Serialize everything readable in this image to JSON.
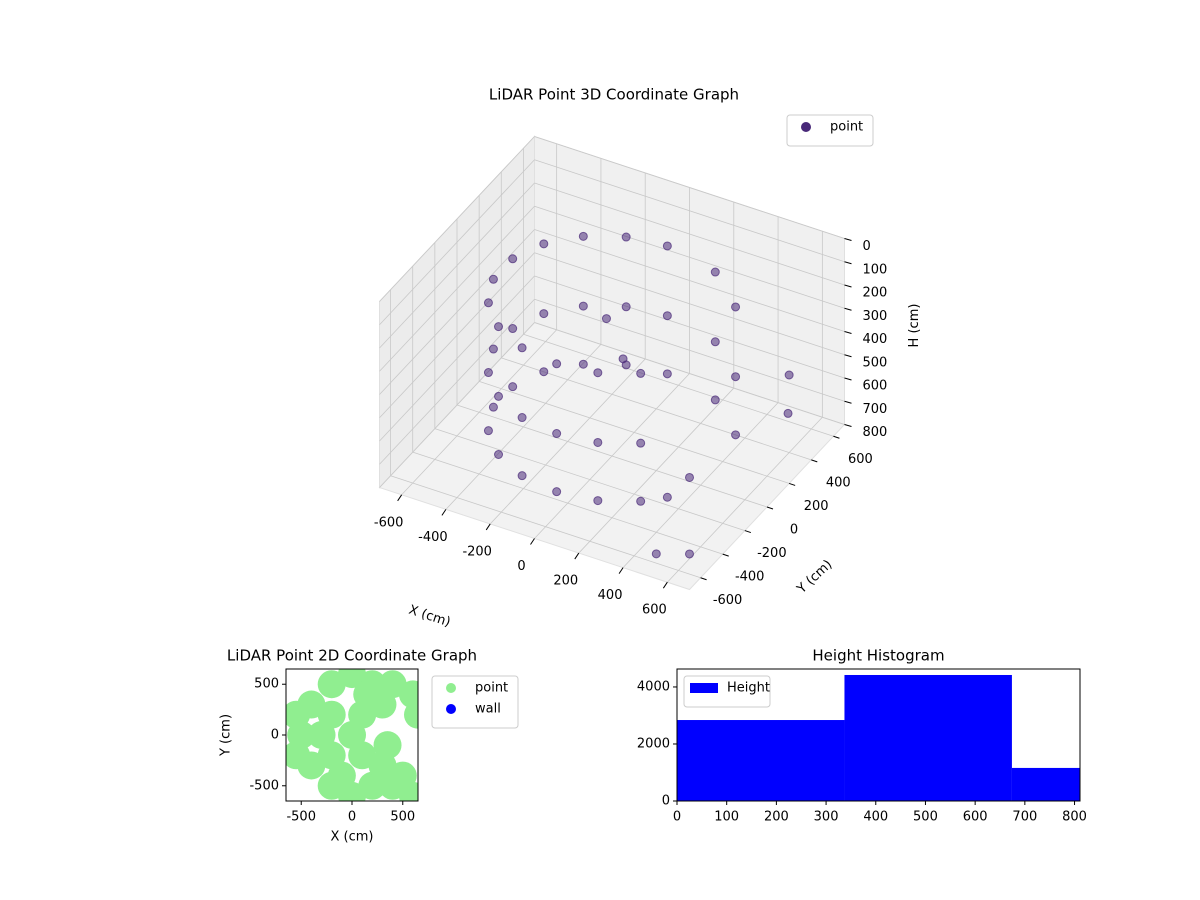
{
  "chart_data": [
    {
      "type": "scatter3d",
      "title": "LiDAR Point 3D Coordinate Graph",
      "xlabel": "X (cm)",
      "ylabel": "Y (cm)",
      "zlabel": "H (cm)",
      "xlim": [
        -700,
        700
      ],
      "ylim": [
        -700,
        700
      ],
      "zlim": [
        800,
        0
      ],
      "xticks": [
        -600,
        -400,
        -200,
        0,
        200,
        400,
        600
      ],
      "yticks": [
        -600,
        -400,
        -200,
        0,
        200,
        400,
        600
      ],
      "zticks": [
        0,
        100,
        200,
        300,
        400,
        500,
        600,
        700,
        800
      ],
      "grid": true,
      "legend": "upper right",
      "series": [
        {
          "name": "point",
          "color": "#482878",
          "x": [
            0,
            -171,
            -321,
            -433,
            -492,
            -492,
            -433,
            -321,
            -171,
            0,
            171,
            321,
            250,
            433,
            0,
            -171,
            -321,
            -433,
            -492,
            -492,
            -433,
            -321,
            -171,
            0,
            171,
            321,
            250,
            433,
            0,
            -171,
            -321,
            -433,
            -492,
            -492,
            -433,
            -321,
            -171,
            0,
            171,
            321,
            250,
            433,
            400,
            450,
            600,
            500,
            650,
            620,
            100,
            -50
          ],
          "y": [
            500,
            470,
            383,
            250,
            87,
            -87,
            -250,
            -383,
            -470,
            -500,
            -470,
            -383,
            433,
            250,
            500,
            470,
            383,
            250,
            87,
            -87,
            -250,
            -383,
            -470,
            -500,
            -470,
            -383,
            433,
            250,
            500,
            470,
            383,
            250,
            87,
            -87,
            -250,
            -383,
            -470,
            -500,
            -470,
            -383,
            433,
            250,
            -300,
            -200,
            -500,
            -600,
            300,
            350,
            -100,
            50
          ],
          "z": [
            150,
            150,
            150,
            150,
            150,
            150,
            150,
            150,
            150,
            150,
            150,
            150,
            150,
            150,
            450,
            450,
            450,
            450,
            450,
            450,
            450,
            450,
            450,
            450,
            450,
            450,
            450,
            450,
            700,
            700,
            700,
            700,
            700,
            700,
            700,
            700,
            700,
            700,
            700,
            700,
            700,
            700,
            700,
            650,
            780,
            760,
            400,
            600,
            300,
            250
          ]
        }
      ]
    },
    {
      "type": "scatter",
      "title": "LiDAR Point 2D Coordinate Graph",
      "xlabel": "X (cm)",
      "ylabel": "Y (cm)",
      "xlim": [
        -650,
        650
      ],
      "ylim": [
        -650,
        650
      ],
      "xticks": [
        -500,
        0,
        500
      ],
      "yticks": [
        -500,
        0,
        500
      ],
      "legend": "outside right",
      "series": [
        {
          "name": "point",
          "color": "#90ee90",
          "x": [
            0,
            -300,
            -500,
            -400,
            -400,
            -200,
            -200,
            0,
            0,
            200,
            200,
            -200,
            -200,
            100,
            100,
            300,
            400,
            500,
            600,
            400,
            600,
            650,
            350,
            -550,
            -550,
            300,
            150,
            -100
          ],
          "y": [
            0,
            0,
            0,
            300,
            -300,
            500,
            -500,
            600,
            -600,
            500,
            -500,
            200,
            -200,
            200,
            -200,
            -300,
            -500,
            -400,
            -600,
            500,
            400,
            200,
            -100,
            200,
            -200,
            300,
            400,
            -400
          ]
        },
        {
          "name": "wall",
          "color": "#0000ff",
          "x": [],
          "y": []
        }
      ]
    },
    {
      "type": "histogram",
      "title": "Height Histogram",
      "bins": [
        0,
        337,
        674,
        811
      ],
      "xlim": [
        0,
        811
      ],
      "ylim": [
        0,
        4630
      ],
      "xticks": [
        0,
        100,
        200,
        300,
        400,
        500,
        600,
        700,
        800
      ],
      "yticks": [
        0,
        2000,
        4000
      ],
      "legend": "upper left",
      "series": [
        {
          "name": "Height",
          "color": "#0000ff",
          "values": [
            2840,
            4420,
            1160
          ]
        }
      ]
    }
  ]
}
